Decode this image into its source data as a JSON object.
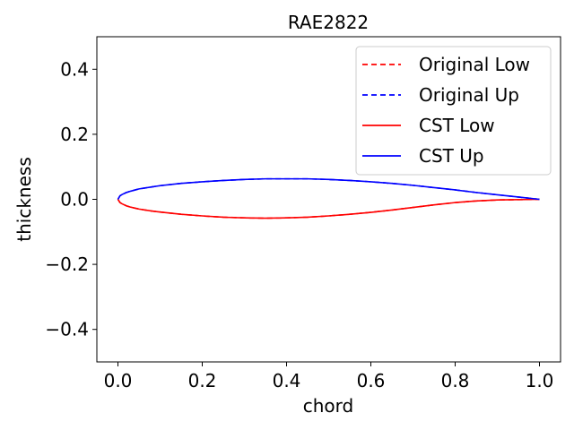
{
  "chart_data": {
    "type": "line",
    "title": "RAE2822",
    "xlabel": "chord",
    "ylabel": "thickness",
    "xlim": [
      -0.05,
      1.05
    ],
    "ylim": [
      -0.5,
      0.5
    ],
    "xticks": [
      0.0,
      0.2,
      0.4,
      0.6,
      0.8,
      1.0
    ],
    "xtick_labels": [
      "0.0",
      "0.2",
      "0.4",
      "0.6",
      "0.8",
      "1.0"
    ],
    "yticks": [
      0.4,
      0.2,
      0.0,
      -0.2,
      -0.4
    ],
    "ytick_labels": [
      "0.4",
      "0.2",
      "0.0",
      "−0.2",
      "−0.4"
    ],
    "grid": false,
    "legend_position": "top-right",
    "series": [
      {
        "name": "Original Low",
        "style": "dashed",
        "color": "#ff0000",
        "x": [
          0.0,
          0.005,
          0.01,
          0.02,
          0.03,
          0.05,
          0.08,
          0.1,
          0.15,
          0.2,
          0.25,
          0.3,
          0.35,
          0.4,
          0.45,
          0.5,
          0.55,
          0.6,
          0.65,
          0.7,
          0.75,
          0.8,
          0.85,
          0.9,
          0.95,
          1.0
        ],
        "y": [
          0.0,
          -0.01,
          -0.014,
          -0.02,
          -0.024,
          -0.03,
          -0.036,
          -0.039,
          -0.046,
          -0.051,
          -0.055,
          -0.057,
          -0.058,
          -0.057,
          -0.055,
          -0.051,
          -0.046,
          -0.04,
          -0.033,
          -0.025,
          -0.017,
          -0.01,
          -0.005,
          -0.002,
          -0.001,
          0.0
        ]
      },
      {
        "name": "Original Up",
        "style": "dashed",
        "color": "#0000ff",
        "x": [
          0.0,
          0.005,
          0.01,
          0.02,
          0.03,
          0.05,
          0.08,
          0.1,
          0.15,
          0.2,
          0.25,
          0.3,
          0.35,
          0.4,
          0.45,
          0.5,
          0.55,
          0.6,
          0.65,
          0.7,
          0.75,
          0.8,
          0.85,
          0.9,
          0.95,
          1.0
        ],
        "y": [
          0.0,
          0.011,
          0.015,
          0.021,
          0.025,
          0.032,
          0.038,
          0.042,
          0.049,
          0.054,
          0.058,
          0.061,
          0.063,
          0.063,
          0.063,
          0.061,
          0.058,
          0.054,
          0.049,
          0.043,
          0.036,
          0.029,
          0.021,
          0.014,
          0.007,
          0.0
        ]
      },
      {
        "name": "CST Low",
        "style": "solid",
        "color": "#ff0000",
        "x": [
          0.0,
          0.005,
          0.01,
          0.02,
          0.03,
          0.05,
          0.08,
          0.1,
          0.15,
          0.2,
          0.25,
          0.3,
          0.35,
          0.4,
          0.45,
          0.5,
          0.55,
          0.6,
          0.65,
          0.7,
          0.75,
          0.8,
          0.85,
          0.9,
          0.95,
          1.0
        ],
        "y": [
          0.0,
          -0.01,
          -0.014,
          -0.02,
          -0.024,
          -0.03,
          -0.036,
          -0.039,
          -0.046,
          -0.051,
          -0.055,
          -0.057,
          -0.058,
          -0.057,
          -0.055,
          -0.051,
          -0.046,
          -0.04,
          -0.033,
          -0.025,
          -0.017,
          -0.01,
          -0.005,
          -0.002,
          -0.001,
          0.0
        ]
      },
      {
        "name": "CST Up",
        "style": "solid",
        "color": "#0000ff",
        "x": [
          0.0,
          0.005,
          0.01,
          0.02,
          0.03,
          0.05,
          0.08,
          0.1,
          0.15,
          0.2,
          0.25,
          0.3,
          0.35,
          0.4,
          0.45,
          0.5,
          0.55,
          0.6,
          0.65,
          0.7,
          0.75,
          0.8,
          0.85,
          0.9,
          0.95,
          1.0
        ],
        "y": [
          0.0,
          0.011,
          0.015,
          0.021,
          0.025,
          0.032,
          0.038,
          0.042,
          0.049,
          0.054,
          0.058,
          0.061,
          0.063,
          0.063,
          0.063,
          0.061,
          0.058,
          0.054,
          0.049,
          0.043,
          0.036,
          0.029,
          0.021,
          0.014,
          0.007,
          0.0
        ]
      }
    ]
  }
}
